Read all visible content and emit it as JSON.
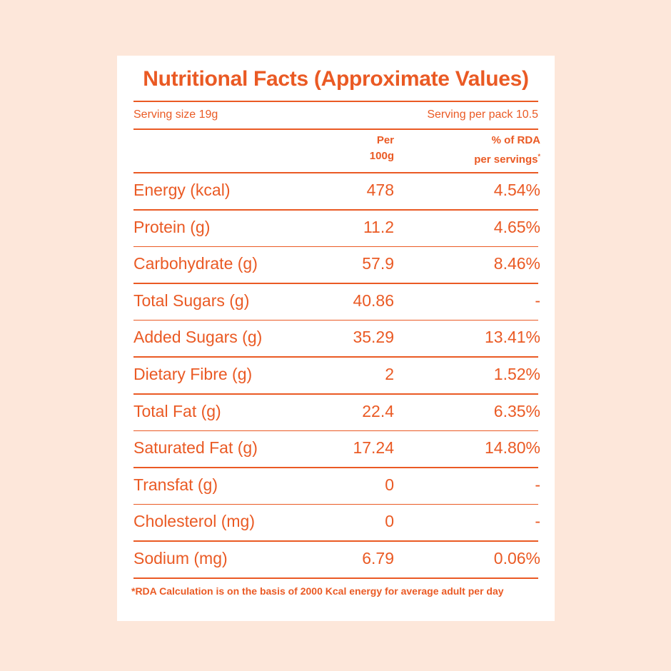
{
  "title": "Nutritional Facts (Approximate Values)",
  "serving_size": "Serving size 19g",
  "serving_per_pack": "Serving per pack 10.5",
  "headers": {
    "per_line1": "Per",
    "per_line2": "100g",
    "rda_line1": "% of RDA",
    "rda_line2": "per servings",
    "rda_mark": "*"
  },
  "rows": [
    {
      "name": "Energy (kcal)",
      "per100g": "478",
      "rda": "4.54%"
    },
    {
      "name": "Protein (g)",
      "per100g": "11.2",
      "rda": "4.65%"
    },
    {
      "name": "Carbohydrate (g)",
      "per100g": "57.9",
      "rda": "8.46%"
    },
    {
      "name": "Total Sugars (g)",
      "per100g": "40.86",
      "rda": "-"
    },
    {
      "name": "Added Sugars (g)",
      "per100g": "35.29",
      "rda": "13.41%"
    },
    {
      "name": "Dietary Fibre (g)",
      "per100g": "2",
      "rda": "1.52%"
    },
    {
      "name": "Total Fat (g)",
      "per100g": "22.4",
      "rda": "6.35%"
    },
    {
      "name": "Saturated Fat (g)",
      "per100g": "17.24",
      "rda": "14.80%"
    },
    {
      "name": "Transfat (g)",
      "per100g": "0",
      "rda": "-"
    },
    {
      "name": "Cholesterol (mg)",
      "per100g": "0",
      "rda": "-"
    },
    {
      "name": "Sodium (mg)",
      "per100g": "6.79",
      "rda": "0.06%"
    }
  ],
  "footnote": "*RDA Calculation is on the basis of 2000 Kcal energy for average adult per day",
  "colors": {
    "accent": "#ea5a24",
    "background": "#fde7da",
    "card": "#ffffff"
  }
}
